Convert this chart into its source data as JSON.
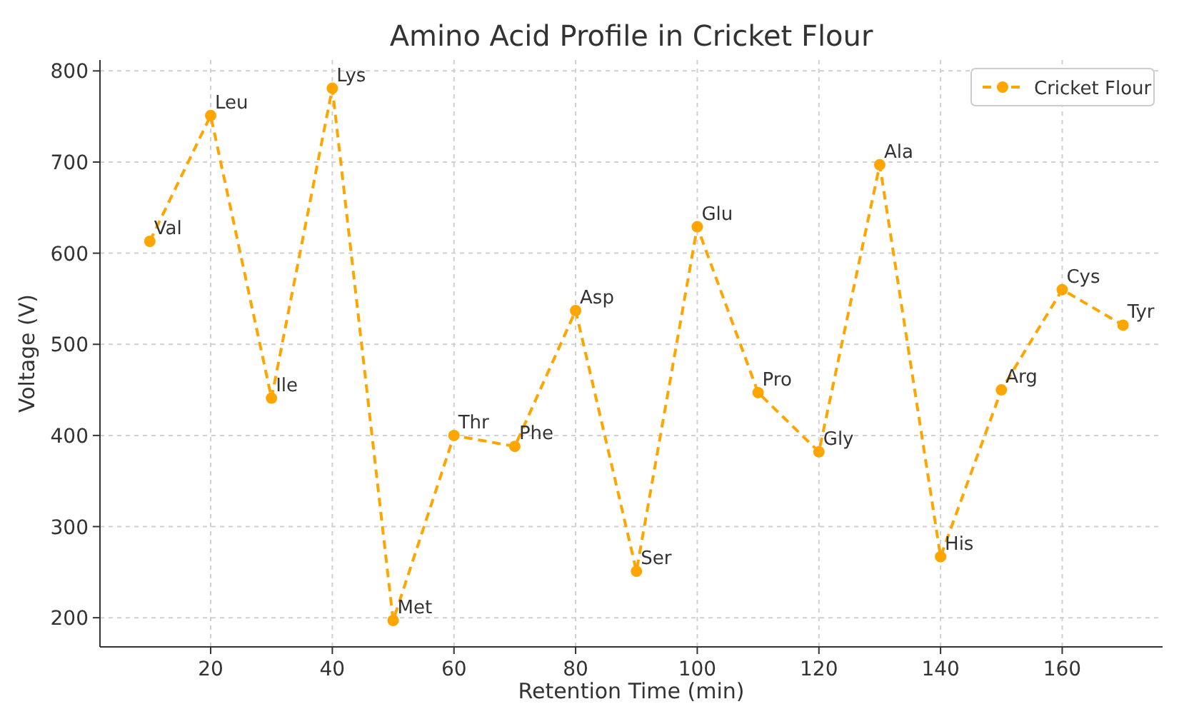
{
  "chart_data": {
    "type": "line",
    "title": "Amino Acid Profile in Cricket Flour",
    "xlabel": "Retention Time (min)",
    "ylabel": "Voltage (V)",
    "x": [
      10,
      20,
      30,
      40,
      50,
      60,
      70,
      80,
      90,
      100,
      110,
      120,
      130,
      140,
      150,
      160,
      170
    ],
    "series": [
      {
        "name": "Cricket Flour",
        "color": "#ffa500",
        "values": [
          613,
          751,
          441,
          781,
          197,
          400,
          388,
          537,
          251,
          629,
          447,
          382,
          697,
          267,
          450,
          560,
          521
        ]
      }
    ],
    "xlim": [
      1.8,
      176.5
    ],
    "ylim": [
      168,
      812
    ],
    "xticks": [
      20,
      40,
      60,
      80,
      100,
      120,
      140,
      160
    ],
    "yticks": [
      200,
      300,
      400,
      500,
      600,
      700,
      800
    ],
    "grid": true,
    "legend": "top right",
    "marker": "circle",
    "line_style": "dashed",
    "annotations": [
      {
        "text": "Val",
        "x": 10,
        "y": 613
      },
      {
        "text": "Leu",
        "x": 20,
        "y": 751
      },
      {
        "text": "Ile",
        "x": 30,
        "y": 441
      },
      {
        "text": "Lys",
        "x": 40,
        "y": 781
      },
      {
        "text": "Met",
        "x": 50,
        "y": 197
      },
      {
        "text": "Thr",
        "x": 60,
        "y": 400
      },
      {
        "text": "Phe",
        "x": 70,
        "y": 388
      },
      {
        "text": "Asp",
        "x": 80,
        "y": 537
      },
      {
        "text": "Ser",
        "x": 90,
        "y": 251
      },
      {
        "text": "Glu",
        "x": 100,
        "y": 629
      },
      {
        "text": "Pro",
        "x": 110,
        "y": 447
      },
      {
        "text": "Gly",
        "x": 120,
        "y": 382
      },
      {
        "text": "Ala",
        "x": 130,
        "y": 697
      },
      {
        "text": "His",
        "x": 140,
        "y": 267
      },
      {
        "text": "Arg",
        "x": 150,
        "y": 450
      },
      {
        "text": "Cys",
        "x": 160,
        "y": 560
      },
      {
        "text": "Tyr",
        "x": 170,
        "y": 521
      }
    ]
  }
}
